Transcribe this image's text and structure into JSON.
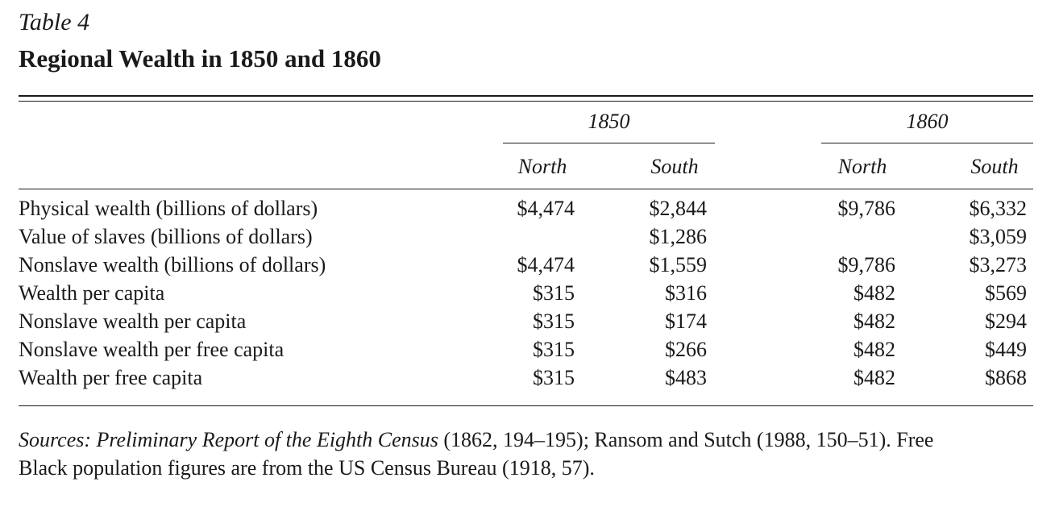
{
  "table": {
    "number": "Table 4",
    "title": "Regional Wealth in 1850 and 1860",
    "year_groups": [
      "1850",
      "1860"
    ],
    "column_headers": [
      "North",
      "South",
      "North",
      "South"
    ],
    "rows": [
      {
        "label": "Physical wealth (billions of dollars)",
        "values": [
          "$4,474",
          "$2,844",
          "$9,786",
          "$6,332"
        ]
      },
      {
        "label": "Value of slaves (billions of dollars)",
        "values": [
          "",
          "$1,286",
          "",
          "$3,059"
        ]
      },
      {
        "label": "Nonslave wealth (billions of dollars)",
        "values": [
          "$4,474",
          "$1,559",
          "$9,786",
          "$3,273"
        ]
      },
      {
        "label": "Wealth per capita",
        "values": [
          "$315",
          "$316",
          "$482",
          "$569"
        ]
      },
      {
        "label": "Nonslave wealth per capita",
        "values": [
          "$315",
          "$174",
          "$482",
          "$294"
        ]
      },
      {
        "label": "Nonslave wealth per free capita",
        "values": [
          "$315",
          "$266",
          "$482",
          "$449"
        ]
      },
      {
        "label": "Wealth per free capita",
        "values": [
          "$315",
          "$483",
          "$482",
          "$868"
        ]
      }
    ]
  },
  "sources": {
    "prefix": "Sources: Preliminary Report of the Eighth Census",
    "text_line1": " (1862, 194–195); Ransom and Sutch (1988, 150–51). Free",
    "text_line2": "Black population figures are from the US Census Bureau (1918, 57)."
  }
}
